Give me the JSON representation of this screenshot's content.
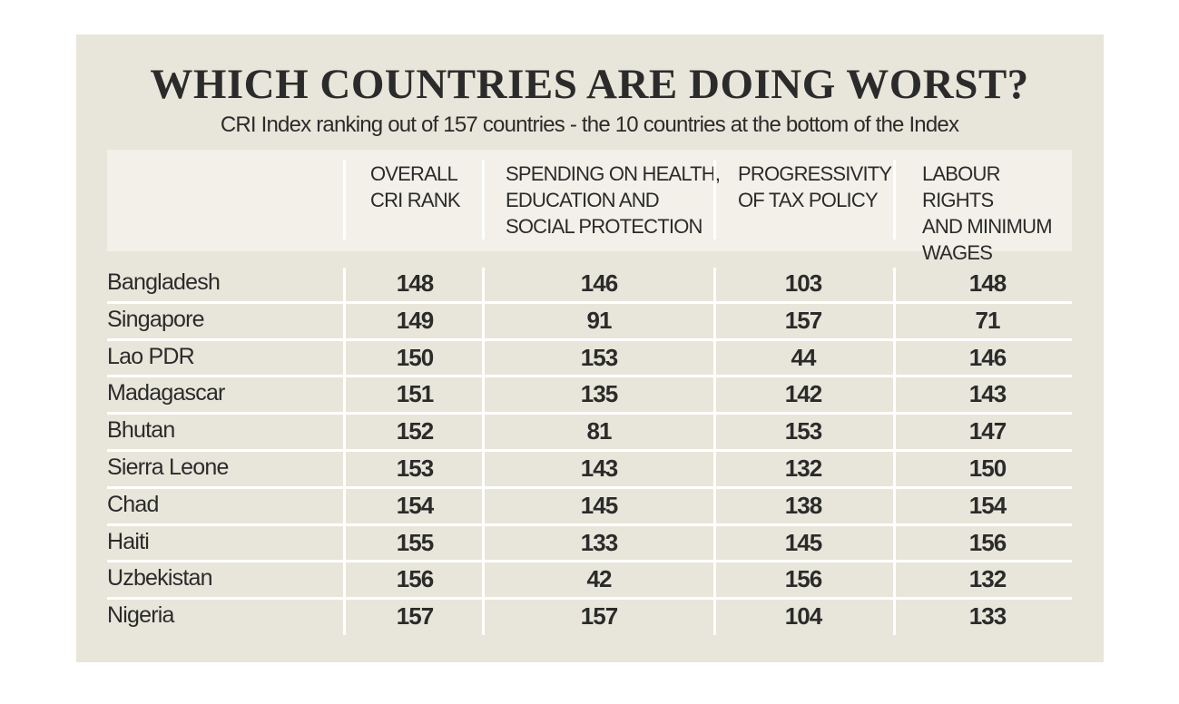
{
  "chart_data": {
    "type": "table",
    "title": "WHICH COUNTRIES ARE DOING WORST?",
    "subtitle": "CRI Index ranking out of 157 countries - the 10 countries at the bottom of the Index",
    "columns": [
      "",
      "OVERALL\nCRI RANK",
      "SPENDING ON HEALTH,\nEDUCATION AND\nSOCIAL PROTECTION",
      "PROGRESSIVITY\nOF TAX POLICY",
      "LABOUR RIGHTS\nAND MINIMUM\nWAGES"
    ],
    "rows": [
      {
        "country": "Bangladesh",
        "values": [
          "148",
          "146",
          "103",
          "148"
        ]
      },
      {
        "country": "Singapore",
        "values": [
          "149",
          "91",
          "157",
          "71"
        ]
      },
      {
        "country": "Lao PDR",
        "values": [
          "150",
          "153",
          "44",
          "146"
        ]
      },
      {
        "country": "Madagascar",
        "values": [
          "151",
          "135",
          "142",
          "143"
        ]
      },
      {
        "country": "Bhutan",
        "values": [
          "152",
          "81",
          "153",
          "147"
        ]
      },
      {
        "country": "Sierra Leone",
        "values": [
          "153",
          "143",
          "132",
          "150"
        ]
      },
      {
        "country": "Chad",
        "values": [
          "154",
          "145",
          "138",
          "154"
        ]
      },
      {
        "country": "Haiti",
        "values": [
          "155",
          "133",
          "145",
          "156"
        ]
      },
      {
        "country": "Uzbekistan",
        "values": [
          "156",
          "42",
          "156",
          "132"
        ]
      },
      {
        "country": "Nigeria",
        "values": [
          "157",
          "157",
          "104",
          "133"
        ]
      }
    ]
  },
  "colors": {
    "panel": "#e8e6da",
    "header": "#f2f0e8",
    "text": "#2b2b2b",
    "divider": "#ffffff"
  }
}
